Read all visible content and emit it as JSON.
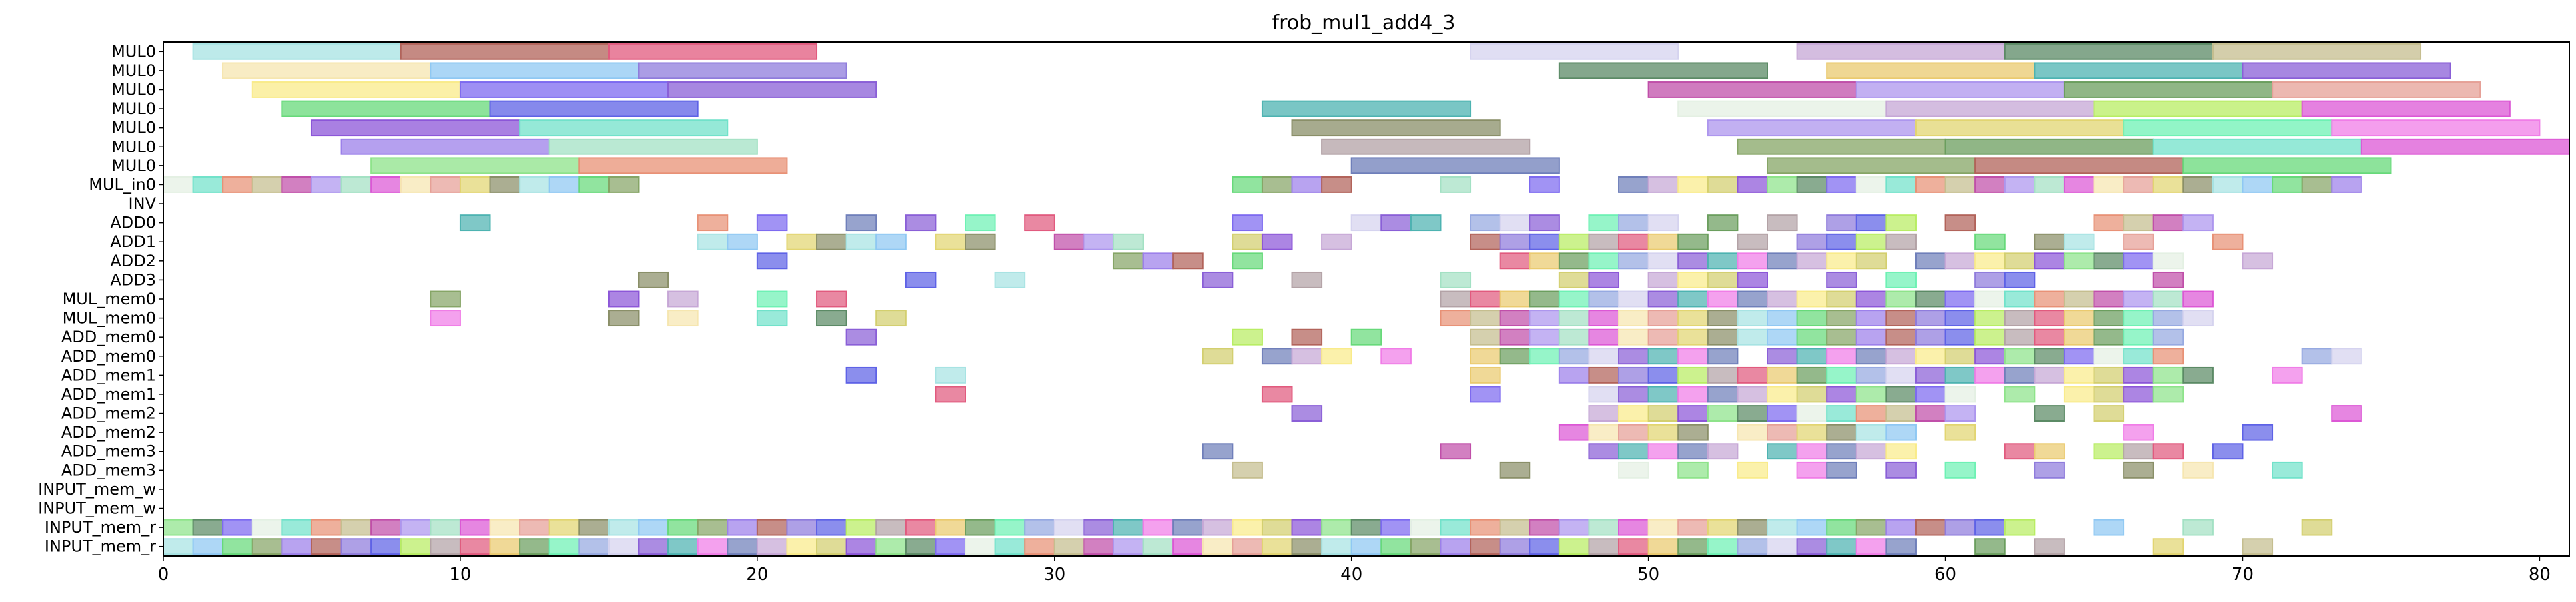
{
  "chart_data": {
    "type": "gantt",
    "title": "frob_mul1_add4_3",
    "xlabel": "",
    "ylabel": "",
    "xlim": [
      0,
      81
    ],
    "grid": false,
    "x_ticks": [
      0,
      10,
      20,
      30,
      40,
      50,
      60,
      70,
      80
    ],
    "rows": [
      "MUL0",
      "MUL0",
      "MUL0",
      "MUL0",
      "MUL0",
      "MUL0",
      "MUL0",
      "MUL_in0",
      "INV",
      "ADD0",
      "ADD1",
      "ADD2",
      "ADD3",
      "MUL_mem0",
      "MUL_mem0",
      "ADD_mem0",
      "ADD_mem0",
      "ADD_mem1",
      "ADD_mem1",
      "ADD_mem2",
      "ADD_mem2",
      "ADD_mem3",
      "ADD_mem3",
      "INPUT_mem_w",
      "INPUT_mem_w",
      "INPUT_mem_r",
      "INPUT_mem_r"
    ],
    "palette": [
      "#a7e3e3",
      "#b2635a",
      "#e15a7e",
      "#d5d3ef",
      "#c6a7d6",
      "#5b8a65",
      "#c5be8f",
      "#f6e6b0",
      "#8fc8f3",
      "#8f7cdc",
      "#eaca6f",
      "#8a5fd7",
      "#f9eb8a",
      "#7d6af0",
      "#c04fa9",
      "#e6a097",
      "#67d97a",
      "#5e62e6",
      "#6b9e5e",
      "#4db3b1",
      "#d3cf6f",
      "#e4f0e3",
      "#ad96ee",
      "#e2d571",
      "#86a566",
      "#b8ed63",
      "#6ef1b4",
      "#f07de7",
      "#8c56d8",
      "#71e2ca",
      "#a3e1c4",
      "#8a8f68",
      "#9c80ea",
      "#b3a2a6",
      "#96a9e1",
      "#6f7fba",
      "#8ee38a",
      "#e89176",
      "#dc57d5"
    ],
    "mul_bars": [
      {
        "row": 0,
        "start": 1,
        "end": 8,
        "c": 0
      },
      {
        "row": 0,
        "start": 8,
        "end": 15,
        "c": 1
      },
      {
        "row": 0,
        "start": 15,
        "end": 22,
        "c": 2
      },
      {
        "row": 0,
        "start": 44,
        "end": 51,
        "c": 3
      },
      {
        "row": 0,
        "start": 55,
        "end": 62,
        "c": 4
      },
      {
        "row": 0,
        "start": 62,
        "end": 69,
        "c": 5
      },
      {
        "row": 0,
        "start": 69,
        "end": 76,
        "c": 6
      },
      {
        "row": 1,
        "start": 2,
        "end": 9,
        "c": 7
      },
      {
        "row": 1,
        "start": 9,
        "end": 16,
        "c": 8
      },
      {
        "row": 1,
        "start": 16,
        "end": 23,
        "c": 9
      },
      {
        "row": 1,
        "start": 47,
        "end": 54,
        "c": 5
      },
      {
        "row": 1,
        "start": 56,
        "end": 63,
        "c": 10
      },
      {
        "row": 1,
        "start": 63,
        "end": 70,
        "c": 19
      },
      {
        "row": 1,
        "start": 70,
        "end": 77,
        "c": 11
      },
      {
        "row": 2,
        "start": 3,
        "end": 10,
        "c": 12
      },
      {
        "row": 2,
        "start": 10,
        "end": 17,
        "c": 13
      },
      {
        "row": 2,
        "start": 17,
        "end": 24,
        "c": 11
      },
      {
        "row": 2,
        "start": 50,
        "end": 57,
        "c": 14
      },
      {
        "row": 2,
        "start": 57,
        "end": 64,
        "c": 22
      },
      {
        "row": 2,
        "start": 64,
        "end": 71,
        "c": 18
      },
      {
        "row": 2,
        "start": 71,
        "end": 78,
        "c": 15
      },
      {
        "row": 3,
        "start": 4,
        "end": 11,
        "c": 16
      },
      {
        "row": 3,
        "start": 11,
        "end": 18,
        "c": 17
      },
      {
        "row": 3,
        "start": 37,
        "end": 44,
        "c": 19
      },
      {
        "row": 3,
        "start": 51,
        "end": 58,
        "c": 21
      },
      {
        "row": 3,
        "start": 58,
        "end": 65,
        "c": 4
      },
      {
        "row": 3,
        "start": 65,
        "end": 72,
        "c": 25
      },
      {
        "row": 3,
        "start": 72,
        "end": 79,
        "c": 38
      },
      {
        "row": 4,
        "start": 5,
        "end": 12,
        "c": 28
      },
      {
        "row": 4,
        "start": 12,
        "end": 19,
        "c": 29
      },
      {
        "row": 4,
        "start": 38,
        "end": 45,
        "c": 31
      },
      {
        "row": 4,
        "start": 52,
        "end": 59,
        "c": 22
      },
      {
        "row": 4,
        "start": 59,
        "end": 66,
        "c": 23
      },
      {
        "row": 4,
        "start": 66,
        "end": 73,
        "c": 26
      },
      {
        "row": 4,
        "start": 73,
        "end": 80,
        "c": 27
      },
      {
        "row": 5,
        "start": 6,
        "end": 13,
        "c": 32
      },
      {
        "row": 5,
        "start": 13,
        "end": 20,
        "c": 30
      },
      {
        "row": 5,
        "start": 39,
        "end": 46,
        "c": 33
      },
      {
        "row": 5,
        "start": 53,
        "end": 60,
        "c": 24
      },
      {
        "row": 5,
        "start": 60,
        "end": 67,
        "c": 18
      },
      {
        "row": 5,
        "start": 67,
        "end": 74,
        "c": 29
      },
      {
        "row": 5,
        "start": 74,
        "end": 81,
        "c": 38
      },
      {
        "row": 6,
        "start": 7,
        "end": 14,
        "c": 36
      },
      {
        "row": 6,
        "start": 14,
        "end": 21,
        "c": 37
      },
      {
        "row": 6,
        "start": 40,
        "end": 47,
        "c": 35
      },
      {
        "row": 6,
        "start": 54,
        "end": 61,
        "c": 24
      },
      {
        "row": 6,
        "start": 61,
        "end": 68,
        "c": 1
      },
      {
        "row": 6,
        "start": 68,
        "end": 75,
        "c": 16
      }
    ],
    "unit_starts": [
      [],
      [],
      [],
      [],
      [],
      [],
      [],
      [
        0,
        1,
        2,
        3,
        4,
        5,
        6,
        7,
        8,
        9,
        10,
        11,
        12,
        13,
        14,
        15,
        36,
        37,
        38,
        39,
        43,
        46,
        49,
        50,
        51,
        52,
        53,
        54,
        55,
        56,
        57,
        58,
        59,
        60,
        61,
        62,
        63,
        64,
        65,
        66,
        67,
        68,
        69,
        70,
        71,
        72,
        73
      ],
      [],
      [
        10,
        18,
        20,
        23,
        25,
        27,
        29,
        36,
        40,
        41,
        42,
        44,
        45,
        46,
        48,
        49,
        50,
        52,
        54,
        56,
        57,
        58,
        60,
        65,
        66,
        67,
        68
      ],
      [
        18,
        19,
        21,
        22,
        23,
        24,
        26,
        27,
        30,
        31,
        32,
        36,
        37,
        39,
        44,
        45,
        46,
        47,
        48,
        49,
        50,
        51,
        53,
        55,
        56,
        57,
        58,
        61,
        63,
        64,
        66,
        69
      ],
      [
        20,
        32,
        33,
        34,
        36,
        45,
        46,
        47,
        48,
        49,
        50,
        51,
        52,
        53,
        54,
        55,
        56,
        57,
        59,
        60,
        61,
        62,
        63,
        64,
        65,
        66,
        67,
        70
      ],
      [
        16,
        25,
        28,
        35,
        38,
        43,
        47,
        48,
        50,
        51,
        52,
        53,
        56,
        58,
        61,
        62,
        67
      ],
      [
        9,
        15,
        17,
        20,
        22,
        43,
        44,
        45,
        46,
        47,
        48,
        49,
        50,
        51,
        52,
        53,
        54,
        55,
        56,
        57,
        58,
        59,
        60,
        61,
        62,
        63,
        64,
        65,
        66,
        67,
        68
      ],
      [
        9,
        15,
        17,
        20,
        22,
        24,
        43,
        44,
        45,
        46,
        47,
        48,
        49,
        50,
        51,
        52,
        53,
        54,
        55,
        56,
        57,
        58,
        59,
        60,
        61,
        62,
        63,
        64,
        65,
        66,
        67,
        68
      ],
      [
        23,
        36,
        38,
        40,
        44,
        45,
        46,
        47,
        48,
        49,
        50,
        51,
        52,
        53,
        54,
        55,
        56,
        57,
        58,
        59,
        60,
        61,
        62,
        63,
        64,
        65,
        66,
        67
      ],
      [
        35,
        37,
        38,
        39,
        41,
        44,
        45,
        46,
        47,
        48,
        49,
        50,
        51,
        52,
        54,
        55,
        56,
        57,
        58,
        59,
        60,
        61,
        62,
        63,
        64,
        65,
        66,
        67,
        72,
        73
      ],
      [
        23,
        26,
        44,
        47,
        48,
        49,
        50,
        51,
        52,
        53,
        54,
        55,
        56,
        57,
        58,
        59,
        60,
        61,
        62,
        63,
        64,
        65,
        66,
        67,
        68,
        71
      ],
      [
        26,
        37,
        44,
        48,
        49,
        50,
        51,
        52,
        53,
        54,
        55,
        56,
        57,
        58,
        59,
        60,
        62,
        64,
        65,
        66,
        67
      ],
      [
        38,
        48,
        49,
        50,
        51,
        52,
        53,
        54,
        55,
        56,
        57,
        58,
        59,
        60,
        63,
        65,
        73
      ],
      [
        47,
        48,
        49,
        50,
        51,
        53,
        54,
        55,
        56,
        57,
        58,
        60,
        66,
        70
      ],
      [
        35,
        43,
        48,
        49,
        50,
        51,
        52,
        54,
        55,
        56,
        57,
        58,
        62,
        63,
        65,
        66,
        67,
        69
      ],
      [
        36,
        45,
        49,
        51,
        53,
        55,
        56,
        58,
        60,
        63,
        66,
        68,
        71
      ],
      [],
      [],
      [
        0,
        1,
        2,
        3,
        4,
        5,
        6,
        7,
        8,
        9,
        10,
        11,
        12,
        13,
        14,
        15,
        16,
        17,
        18,
        19,
        20,
        21,
        22,
        23,
        24,
        25,
        26,
        27,
        28,
        29,
        30,
        31,
        32,
        33,
        34,
        35,
        36,
        37,
        38,
        39,
        40,
        41,
        42,
        43,
        44,
        45,
        46,
        47,
        48,
        49,
        50,
        51,
        52,
        53,
        54,
        55,
        56,
        57,
        58,
        59,
        60,
        61,
        62,
        65,
        68,
        72
      ],
      [
        0,
        1,
        2,
        3,
        4,
        5,
        6,
        7,
        8,
        9,
        10,
        11,
        12,
        13,
        14,
        15,
        16,
        17,
        18,
        19,
        20,
        21,
        22,
        23,
        24,
        25,
        26,
        27,
        28,
        29,
        30,
        31,
        32,
        33,
        34,
        35,
        36,
        37,
        38,
        39,
        40,
        41,
        42,
        43,
        44,
        45,
        46,
        47,
        48,
        49,
        50,
        51,
        52,
        53,
        54,
        55,
        56,
        57,
        58,
        61,
        63,
        67,
        70
      ]
    ]
  }
}
